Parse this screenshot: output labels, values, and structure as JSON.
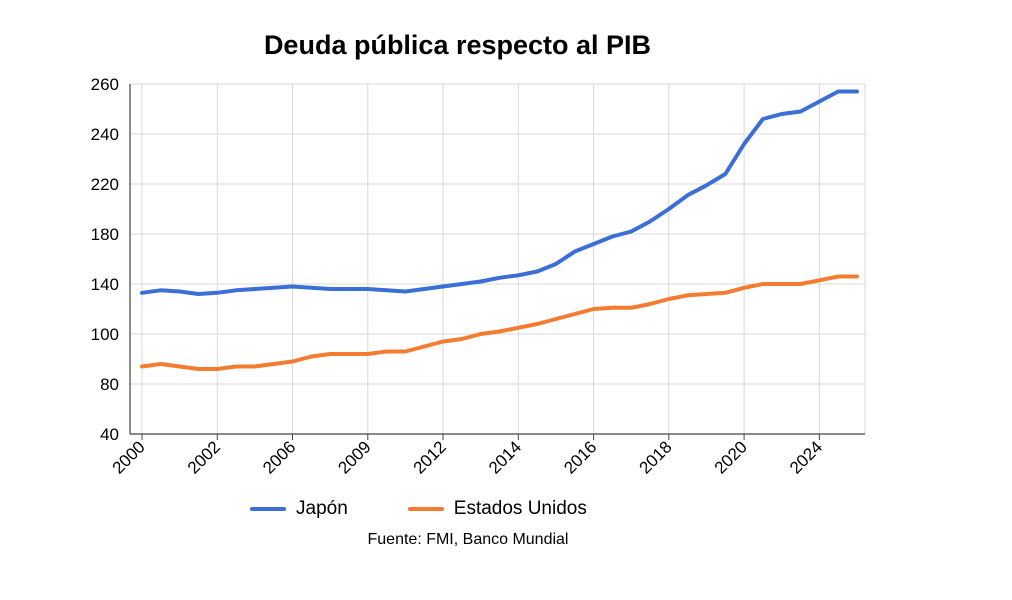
{
  "chart_data": {
    "type": "line",
    "title": "Deuda pública respecto al PIB",
    "xlabel": "",
    "ylabel": "",
    "y_ticks": [
      40,
      80,
      100,
      140,
      180,
      220,
      240,
      260
    ],
    "x_tick_labels": [
      "2000",
      "2002",
      "2006",
      "2009",
      "2012",
      "2014",
      "2016",
      "2018",
      "2020",
      "2024"
    ],
    "x_positions": [
      0,
      1,
      2,
      3,
      4,
      5,
      6,
      7,
      8,
      9,
      10,
      11,
      12,
      13,
      14,
      15,
      16,
      17,
      18,
      19,
      20,
      21,
      22,
      23,
      24,
      25,
      26,
      27,
      28,
      29,
      30,
      31,
      32,
      33,
      34,
      35,
      36,
      37,
      38
    ],
    "x_tick_index_positions": [
      0,
      4,
      8,
      12,
      16,
      20,
      24,
      28,
      32,
      36
    ],
    "series": [
      {
        "name": "Japón",
        "color": "#3b6fd6",
        "values": [
          133,
          135,
          134,
          132,
          133,
          135,
          136,
          137,
          138,
          137,
          136,
          136,
          136,
          135,
          134,
          136,
          138,
          140,
          142,
          145,
          147,
          150,
          156,
          166,
          172,
          178,
          182,
          190,
          200,
          211,
          219,
          224,
          236,
          246,
          248,
          249,
          253,
          257,
          257
        ]
      },
      {
        "name": "Estados Unidos",
        "color": "#f47c30",
        "values": [
          87,
          88,
          87,
          86,
          86,
          87,
          87,
          88,
          89,
          91,
          92,
          92,
          92,
          93,
          93,
          95,
          97,
          98,
          100,
          102,
          105,
          108,
          112,
          116,
          120,
          121,
          121,
          124,
          128,
          131,
          132,
          133,
          137,
          140,
          140,
          140,
          143,
          146,
          146
        ]
      }
    ],
    "legend_position": "bottom",
    "grid": true,
    "source": "Fuente: FMI, Banco Mundial"
  }
}
